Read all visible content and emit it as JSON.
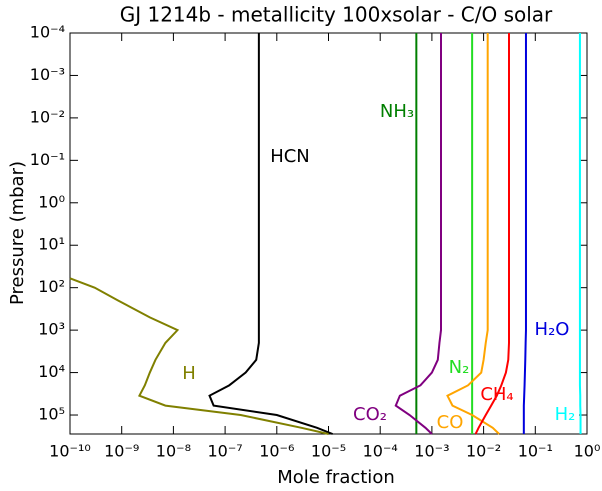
{
  "chart_data": {
    "type": "line",
    "title": "GJ 1214b - metallicity 100xsolar - C/O solar",
    "xlabel": "Mole fraction",
    "ylabel": "Pressure (mbar)",
    "xscale": "log",
    "yscale": "log",
    "y_inverted": true,
    "xlim": [
      1e-10,
      1
    ],
    "ylim": [
      0.0001,
      280000
    ],
    "xticks": [
      {
        "value": 1e-10,
        "label": "10⁻¹⁰"
      },
      {
        "value": 1e-09,
        "label": "10⁻⁹"
      },
      {
        "value": 1e-08,
        "label": "10⁻⁸"
      },
      {
        "value": 1e-07,
        "label": "10⁻⁷"
      },
      {
        "value": 1e-06,
        "label": "10⁻⁶"
      },
      {
        "value": 1e-05,
        "label": "10⁻⁵"
      },
      {
        "value": 0.0001,
        "label": "10⁻⁴"
      },
      {
        "value": 0.001,
        "label": "10⁻³"
      },
      {
        "value": 0.01,
        "label": "10⁻²"
      },
      {
        "value": 0.1,
        "label": "10⁻¹"
      },
      {
        "value": 1,
        "label": "10⁰"
      }
    ],
    "yticks": [
      {
        "value": 0.0001,
        "label": "10⁻⁴"
      },
      {
        "value": 0.001,
        "label": "10⁻³"
      },
      {
        "value": 0.01,
        "label": "10⁻²"
      },
      {
        "value": 0.1,
        "label": "10⁻¹"
      },
      {
        "value": 1,
        "label": "10⁰"
      },
      {
        "value": 10,
        "label": "10¹"
      },
      {
        "value": 100,
        "label": "10²"
      },
      {
        "value": 1000,
        "label": "10³"
      },
      {
        "value": 10000,
        "label": "10⁴"
      },
      {
        "value": 100000,
        "label": "10⁵"
      }
    ],
    "y": [
      0.0001,
      0.001,
      0.01,
      0.1,
      1,
      10,
      60,
      100,
      200,
      500,
      1000,
      2000,
      5000,
      10000,
      20000,
      35000,
      60000,
      100000,
      200000,
      280000
    ],
    "series": [
      {
        "name": "HCN",
        "color": "#000000",
        "values": [
          4.5e-07,
          4.5e-07,
          4.5e-07,
          4.5e-07,
          4.5e-07,
          4.5e-07,
          4.5e-07,
          4.5e-07,
          4.5e-07,
          4.5e-07,
          4.5e-07,
          4.5e-07,
          4e-07,
          2.5e-07,
          1.2e-07,
          5e-08,
          6e-08,
          1e-06,
          6e-06,
          1.2e-05
        ]
      },
      {
        "name": "H",
        "color": "#808000",
        "values": [
          null,
          null,
          null,
          null,
          null,
          null,
          1e-10,
          3e-10,
          8.5e-10,
          3.5e-09,
          1.2e-08,
          7e-09,
          4.5e-09,
          3.5e-09,
          2.8e-09,
          2.2e-09,
          7e-09,
          2e-07,
          3e-06,
          1e-05
        ]
      },
      {
        "name": "NH₃",
        "color": "#007f00",
        "values": [
          0.0005,
          0.0005,
          0.0005,
          0.0005,
          0.0005,
          0.0005,
          0.0005,
          0.0005,
          0.0005,
          0.0005,
          0.0005,
          0.0005,
          0.0005,
          0.0005,
          0.0005,
          0.0005,
          0.0005,
          0.0005,
          0.0005,
          0.0005
        ]
      },
      {
        "name": "CO₂",
        "color": "#800080",
        "values": [
          0.0015,
          0.0015,
          0.0015,
          0.0015,
          0.0015,
          0.0015,
          0.0015,
          0.0015,
          0.0015,
          0.0015,
          0.0015,
          0.0014,
          0.0013,
          0.001,
          0.0006,
          0.00024,
          0.0002,
          0.00037,
          0.00075,
          0.001
        ]
      },
      {
        "name": "N₂",
        "color": "#22dd22",
        "values": [
          0.006,
          0.006,
          0.006,
          0.006,
          0.006,
          0.006,
          0.006,
          0.006,
          0.006,
          0.006,
          0.006,
          0.006,
          0.006,
          0.006,
          0.006,
          0.006,
          0.006,
          0.006,
          0.006,
          0.006
        ]
      },
      {
        "name": "CO",
        "color": "#ffa500",
        "values": [
          0.012,
          0.012,
          0.012,
          0.012,
          0.012,
          0.012,
          0.012,
          0.012,
          0.012,
          0.012,
          0.012,
          0.011,
          0.01,
          0.009,
          0.005,
          0.002,
          0.0025,
          0.006,
          0.015,
          0.02
        ]
      },
      {
        "name": "CH₄",
        "color": "#ff0000",
        "values": [
          0.031,
          0.031,
          0.031,
          0.031,
          0.031,
          0.031,
          0.031,
          0.031,
          0.031,
          0.031,
          0.031,
          0.031,
          0.03,
          0.027,
          0.022,
          0.018,
          0.014,
          0.011,
          0.008,
          0.007
        ]
      },
      {
        "name": "H₂O",
        "color": "#0000dd",
        "values": [
          0.066,
          0.066,
          0.066,
          0.066,
          0.066,
          0.066,
          0.066,
          0.066,
          0.066,
          0.066,
          0.066,
          0.065,
          0.064,
          0.063,
          0.062,
          0.061,
          0.06,
          0.06,
          0.06,
          0.06
        ]
      },
      {
        "name": "H₂",
        "color": "#00ffff",
        "values": [
          0.73,
          0.73,
          0.73,
          0.73,
          0.73,
          0.73,
          0.73,
          0.73,
          0.73,
          0.73,
          0.73,
          0.73,
          0.73,
          0.73,
          0.73,
          0.74,
          0.74,
          0.75,
          0.75,
          0.75
        ]
      }
    ]
  }
}
